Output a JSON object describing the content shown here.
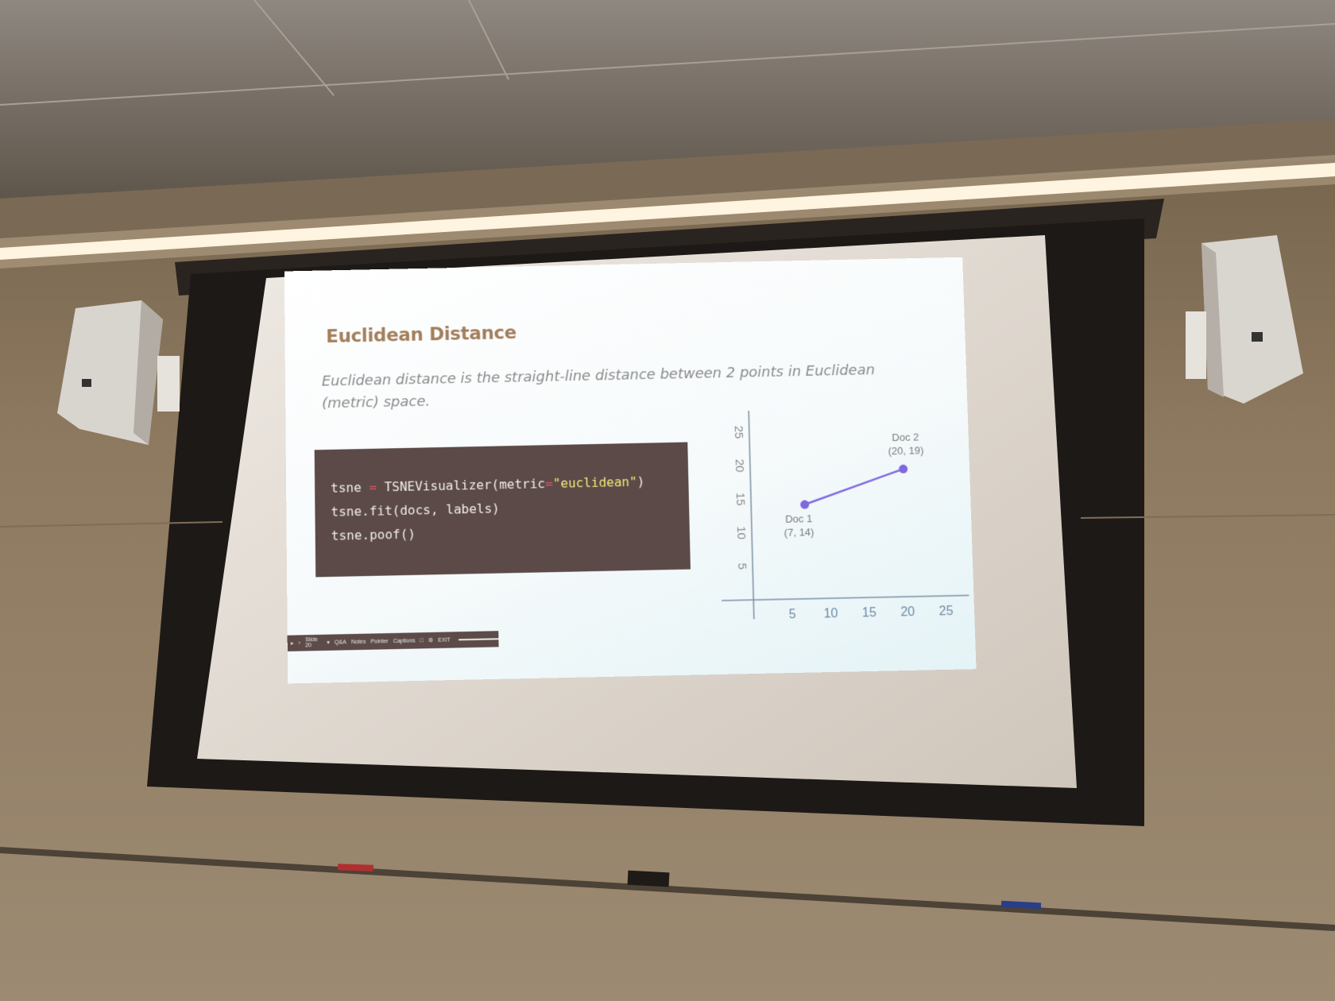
{
  "slide": {
    "title": "Euclidean Distance",
    "subtitle": "Euclidean distance is the straight-line distance between 2 points in Euclidean (metric) space.",
    "code": {
      "line1": {
        "var": "tsne",
        "eq": "=",
        "call": "TSNEVisualizer(metric",
        "eq2": "=",
        "str": "\"euclidean\"",
        "close": ")"
      },
      "line2": "tsne.fit(docs, labels)",
      "line3": "tsne.poof()"
    }
  },
  "chart_data": {
    "type": "line",
    "x_ticks": [
      5,
      10,
      15,
      20,
      25
    ],
    "y_ticks": [
      5,
      10,
      15,
      20,
      25
    ],
    "xlim": [
      0,
      27
    ],
    "ylim": [
      0,
      27
    ],
    "series": [
      {
        "points": [
          {
            "x": 7,
            "y": 14
          },
          {
            "x": 20,
            "y": 19
          }
        ]
      }
    ],
    "point_labels": [
      {
        "name": "Doc 1",
        "coord": "(7, 14)"
      },
      {
        "name": "Doc 2",
        "coord": "(20, 19)"
      }
    ],
    "color": "#7f68e0"
  },
  "toolbar": {
    "slide_label": "Slide 20",
    "qa": "Q&A",
    "notes": "Notes",
    "pointer": "Pointer",
    "captions": "Captions",
    "exit": "EXIT"
  }
}
